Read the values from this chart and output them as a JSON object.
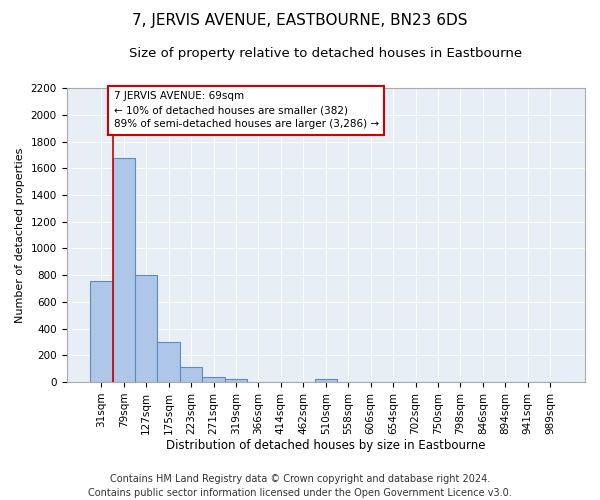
{
  "title": "7, JERVIS AVENUE, EASTBOURNE, BN23 6DS",
  "subtitle": "Size of property relative to detached houses in Eastbourne",
  "xlabel": "Distribution of detached houses by size in Eastbourne",
  "ylabel": "Number of detached properties",
  "categories": [
    "31sqm",
    "79sqm",
    "127sqm",
    "175sqm",
    "223sqm",
    "271sqm",
    "319sqm",
    "366sqm",
    "414sqm",
    "462sqm",
    "510sqm",
    "558sqm",
    "606sqm",
    "654sqm",
    "702sqm",
    "750sqm",
    "798sqm",
    "846sqm",
    "894sqm",
    "941sqm",
    "989sqm"
  ],
  "values": [
    760,
    1680,
    800,
    300,
    115,
    35,
    25,
    0,
    0,
    0,
    25,
    0,
    0,
    0,
    0,
    0,
    0,
    0,
    0,
    0,
    0
  ],
  "bar_color": "#aec6e8",
  "bar_edge_color": "#5b8db8",
  "annotation_text_line1": "7 JERVIS AVENUE: 69sqm",
  "annotation_text_line2": "← 10% of detached houses are smaller (382)",
  "annotation_text_line3": "89% of semi-detached houses are larger (3,286) →",
  "annotation_box_facecolor": "white",
  "annotation_box_edgecolor": "#cc0000",
  "red_line_color": "#cc0000",
  "ylim": [
    0,
    2200
  ],
  "yticks": [
    0,
    200,
    400,
    600,
    800,
    1000,
    1200,
    1400,
    1600,
    1800,
    2000,
    2200
  ],
  "footer_line1": "Contains HM Land Registry data © Crown copyright and database right 2024.",
  "footer_line2": "Contains public sector information licensed under the Open Government Licence v3.0.",
  "bg_color": "#e8eef6",
  "grid_color": "#ffffff",
  "title_fontsize": 11,
  "subtitle_fontsize": 9.5,
  "ylabel_fontsize": 8,
  "xlabel_fontsize": 8.5,
  "tick_fontsize": 7.5,
  "footer_fontsize": 7,
  "annot_fontsize": 7.5
}
